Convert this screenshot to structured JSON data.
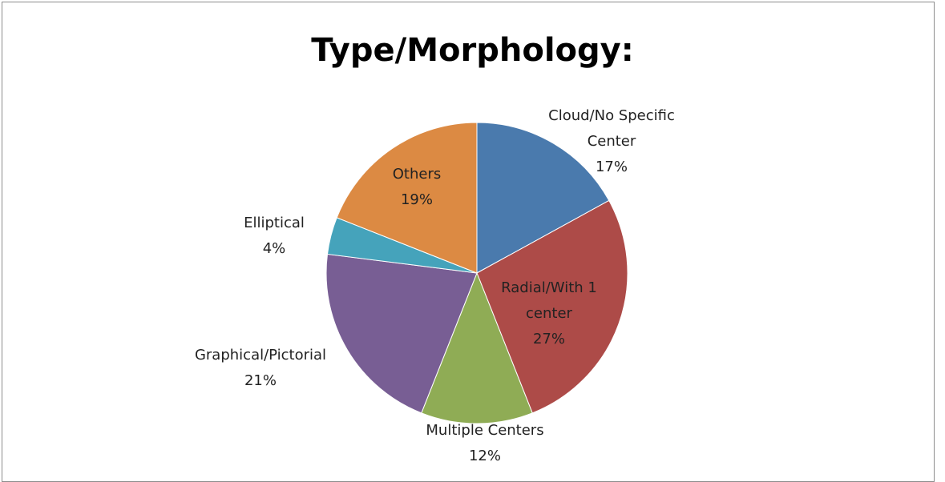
{
  "chart_data": {
    "type": "pie",
    "title": "Type/Morphology:",
    "categories": [
      "Cloud/No Specific Center",
      "Radial/With 1 center",
      "Multiple Centers",
      "Graphical/Pictorial",
      "Elliptical",
      "Others"
    ],
    "values": [
      17,
      27,
      12,
      21,
      4,
      19
    ],
    "value_labels": [
      "17%",
      "27%",
      "12%",
      "21%",
      "4%",
      "19%"
    ],
    "colors": [
      "#4a7aad",
      "#ad4b48",
      "#8fac55",
      "#785e94",
      "#45a3bb",
      "#dc8a43"
    ]
  }
}
